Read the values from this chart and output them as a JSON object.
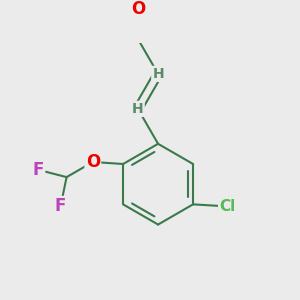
{
  "background_color": "#ebebeb",
  "bond_color": "#3a7a4a",
  "bond_width": 1.5,
  "atom_colors": {
    "O": "#ee0000",
    "Cl": "#55bb55",
    "F": "#bb44bb",
    "H": "#5a8a6a"
  },
  "font_size": 12,
  "font_size_H": 10,
  "font_size_Cl": 11
}
